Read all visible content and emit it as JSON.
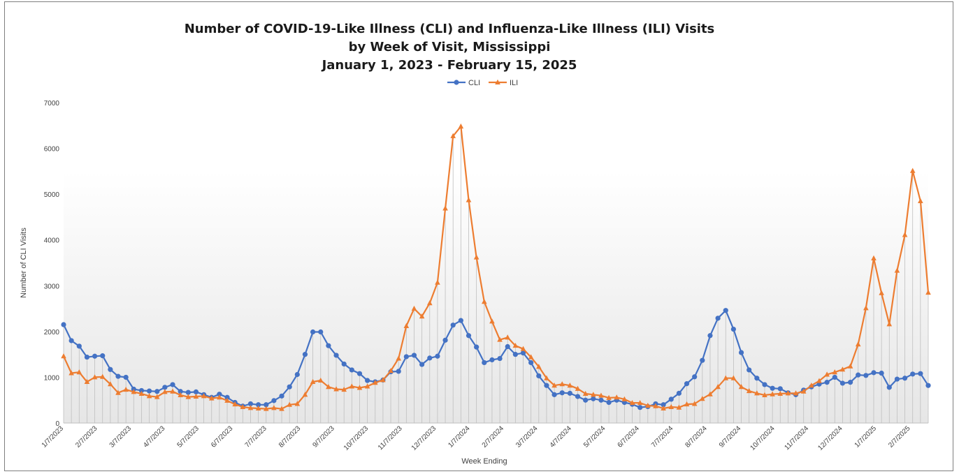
{
  "chart_data": {
    "type": "line",
    "title_lines": [
      "Number of COVID-19-Like Illness (CLI) and Influenza-Like Illness (ILI) Visits",
      "by Week of Visit, Mississippi",
      "January 1, 2023 - February 15, 2025"
    ],
    "xlabel": "Week Ending",
    "ylabel": "Number of CLI Visits",
    "ylim": [
      0,
      7000
    ],
    "y_ticks": [
      "0",
      "1000",
      "2000",
      "3000",
      "4000",
      "5000",
      "6000",
      "7000"
    ],
    "x_ticks": [
      "1/7/2023",
      "2/7/2023",
      "3/7/2023",
      "4/7/2023",
      "5/7/2023",
      "6/7/2023",
      "7/7/2023",
      "8/7/2023",
      "9/7/2023",
      "10/7/2023",
      "11/7/2023",
      "12/7/2023",
      "1/7/2024",
      "2/7/2024",
      "3/7/2024",
      "4/7/2024",
      "5/7/2024",
      "6/7/2024",
      "7/7/2024",
      "8/7/2024",
      "9/7/2024",
      "10/7/2024",
      "11/7/2024",
      "12/7/2024",
      "1/7/2025",
      "2/7/2025"
    ],
    "x_start": "1/7/2023",
    "x_interval": "weekly",
    "legend_position": "top-center",
    "gridlines": "vertical drop lines",
    "series": [
      {
        "name": "CLI",
        "color": "#4472C4",
        "marker": "circle",
        "values": [
          2150,
          1800,
          1680,
          1440,
          1460,
          1470,
          1170,
          1020,
          1000,
          740,
          710,
          700,
          690,
          780,
          840,
          690,
          670,
          680,
          620,
          560,
          630,
          560,
          450,
          370,
          420,
          400,
          400,
          490,
          590,
          790,
          1060,
          1500,
          1990,
          1990,
          1690,
          1480,
          1290,
          1160,
          1080,
          930,
          900,
          940,
          1120,
          1130,
          1450,
          1480,
          1280,
          1420,
          1460,
          1810,
          2140,
          2240,
          1910,
          1660,
          1320,
          1380,
          1410,
          1670,
          1500,
          1530,
          1320,
          1030,
          820,
          620,
          660,
          650,
          580,
          500,
          530,
          500,
          450,
          500,
          450,
          410,
          340,
          360,
          420,
          400,
          520,
          650,
          860,
          1010,
          1370,
          1910,
          2290,
          2460,
          2050,
          1540,
          1160,
          980,
          840,
          760,
          750,
          660,
          620,
          720,
          790,
          850,
          890,
          1000,
          870,
          890,
          1050,
          1040,
          1100,
          1090,
          780,
          960,
          980,
          1070,
          1080,
          820
        ]
      },
      {
        "name": "ILI",
        "color": "#ED7D31",
        "marker": "triangle",
        "values": [
          1460,
          1090,
          1110,
          900,
          1000,
          1010,
          850,
          660,
          730,
          680,
          640,
          590,
          570,
          680,
          690,
          610,
          570,
          580,
          590,
          540,
          560,
          490,
          410,
          350,
          330,
          320,
          310,
          330,
          310,
          400,
          420,
          620,
          900,
          930,
          790,
          740,
          730,
          800,
          770,
          800,
          880,
          940,
          1140,
          1410,
          2120,
          2500,
          2330,
          2620,
          3070,
          4690,
          6270,
          6480,
          4870,
          3620,
          2650,
          2220,
          1820,
          1870,
          1690,
          1620,
          1440,
          1230,
          980,
          820,
          850,
          820,
          750,
          640,
          620,
          600,
          550,
          560,
          520,
          440,
          440,
          380,
          370,
          320,
          350,
          340,
          410,
          420,
          530,
          630,
          790,
          980,
          980,
          790,
          700,
          650,
          610,
          630,
          640,
          650,
          650,
          690,
          820,
          920,
          1060,
          1110,
          1170,
          1240,
          1720,
          2510,
          3600,
          2840,
          2160,
          3330,
          4110,
          5510,
          4850,
          2850
        ]
      }
    ]
  }
}
